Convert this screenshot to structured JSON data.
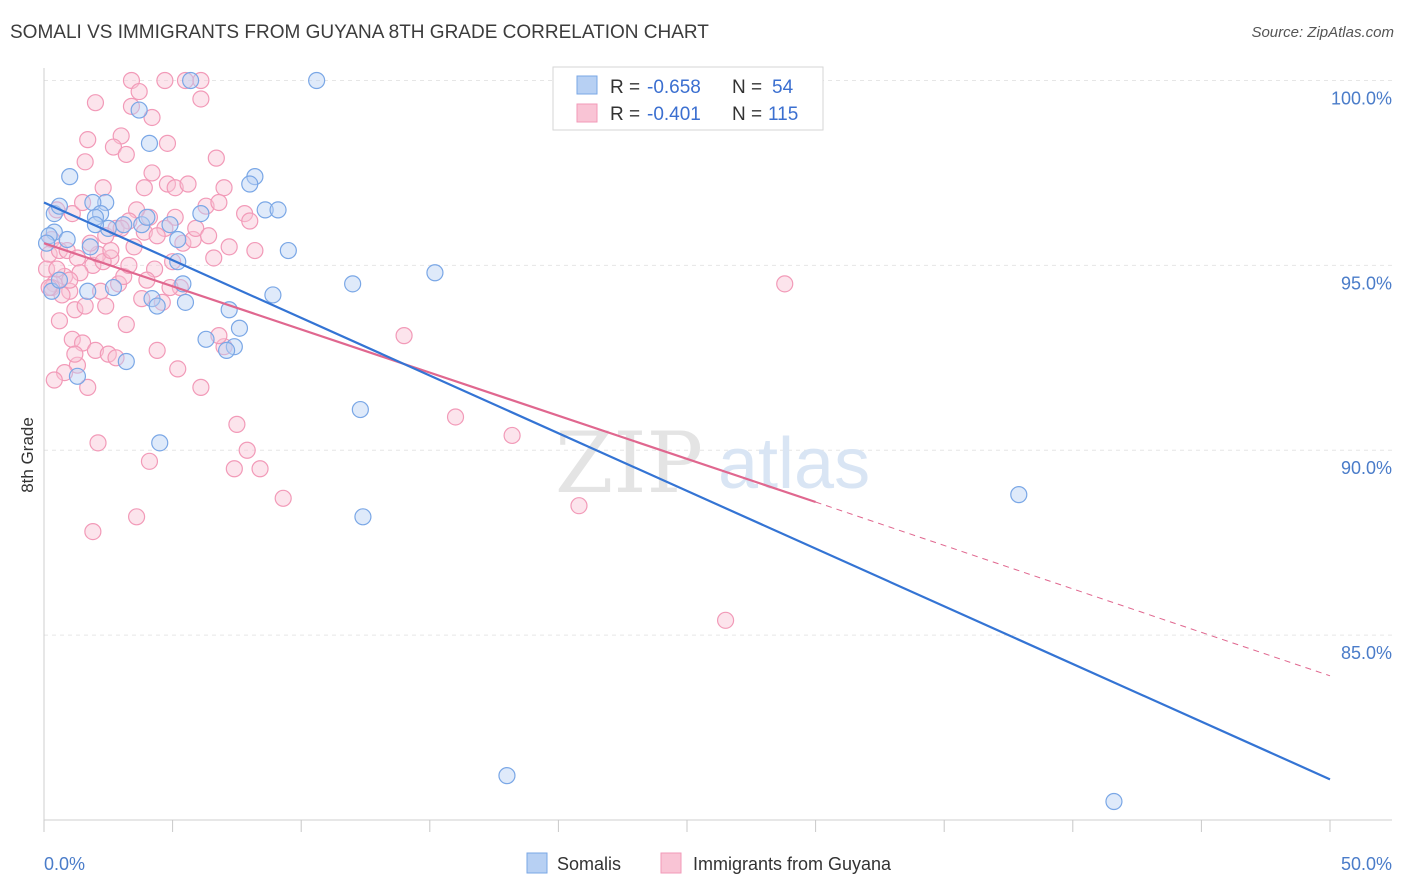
{
  "title": "SOMALI VS IMMIGRANTS FROM GUYANA 8TH GRADE CORRELATION CHART",
  "source": "Source: ZipAtlas.com",
  "watermark": {
    "zip": "ZIP",
    "atlas": "atlas"
  },
  "legend": {
    "r_label": "R =",
    "n_label": "N =",
    "rows": [
      {
        "r": "-0.658",
        "n": "54"
      },
      {
        "r": "-0.401",
        "n": "115"
      }
    ]
  },
  "chart_data": {
    "type": "scatter",
    "title": "SOMALI VS IMMIGRANTS FROM GUYANA 8TH GRADE CORRELATION CHART",
    "xlabel": "",
    "ylabel": "8th Grade",
    "xlim": [
      0,
      50
    ],
    "ylim": [
      80,
      100.5
    ],
    "x_tick_labels": [
      "0.0%",
      "50.0%"
    ],
    "y_ticks": [
      85,
      90,
      95,
      100
    ],
    "y_tick_labels": [
      "85.0%",
      "90.0%",
      "95.0%",
      "100.0%"
    ],
    "colors": {
      "Somalis": "#7aa7e6",
      "Immigrants from Guyana": "#f29ab8",
      "somali_line": "#3474d4",
      "guyana_line": "#e0678f"
    },
    "series": [
      {
        "name": "Somalis",
        "trend": {
          "x": [
            0,
            50
          ],
          "y": [
            96.7,
            81.1
          ]
        },
        "x": [
          5.7,
          10.6,
          0.4,
          2.4,
          0.4,
          1.0,
          0.9,
          1.9,
          0.6,
          3.8,
          3.1,
          4.0,
          2.2,
          5.2,
          6.1,
          8.2,
          8.0,
          4.1,
          3.7,
          8.6,
          9.1,
          9.5,
          5.2,
          4.9,
          2.0,
          2.5,
          1.8,
          1.7,
          2.7,
          4.2,
          0.2,
          0.1,
          0.3,
          5.4,
          5.5,
          4.4,
          3.2,
          6.3,
          7.6,
          7.4,
          7.1,
          7.2,
          12.0,
          15.2,
          8.9,
          12.3,
          12.4,
          18.0,
          4.5,
          1.3,
          0.6,
          37.9,
          41.6,
          2.0
        ],
        "y": [
          100.0,
          100.0,
          95.9,
          96.7,
          96.4,
          97.4,
          95.7,
          96.7,
          96.6,
          96.1,
          96.1,
          96.3,
          96.4,
          95.7,
          96.4,
          97.4,
          97.2,
          98.3,
          99.2,
          96.5,
          96.5,
          95.4,
          95.1,
          96.1,
          96.3,
          96.0,
          95.5,
          94.3,
          94.4,
          94.1,
          95.8,
          95.6,
          94.3,
          94.5,
          94.0,
          93.9,
          92.4,
          93.0,
          93.3,
          92.8,
          92.7,
          93.8,
          94.5,
          94.8,
          94.2,
          91.1,
          88.2,
          81.2,
          90.2,
          92.0,
          94.6,
          88.8,
          80.5,
          96.1
        ],
        "sizes": [
          8,
          8,
          8,
          8,
          8,
          8,
          8,
          8,
          8,
          8,
          8,
          8,
          8,
          8,
          8,
          8,
          8,
          8,
          8,
          8,
          8,
          8,
          8,
          8,
          8,
          8,
          8,
          8,
          8,
          8,
          8,
          8,
          8,
          8,
          8,
          8,
          8,
          8,
          8,
          8,
          8,
          8,
          8,
          8,
          8,
          8,
          8,
          8,
          8,
          8,
          8,
          8,
          8,
          8
        ]
      },
      {
        "name": "Immigrants from Guyana",
        "trend": {
          "x": [
            0,
            30
          ],
          "y": [
            95.6,
            88.6
          ],
          "dashed_to": {
            "x": 50,
            "y": 83.9
          }
        },
        "x": [
          3.4,
          3.7,
          5.5,
          6.1,
          4.7,
          6.1,
          2.0,
          3.4,
          4.2,
          4.8,
          1.7,
          3.0,
          6.7,
          2.7,
          1.6,
          3.2,
          2.3,
          4.2,
          3.9,
          4.8,
          5.1,
          6.3,
          7.0,
          7.8,
          8.0,
          5.6,
          5.1,
          6.8,
          4.1,
          4.7,
          3.6,
          0.5,
          1.1,
          1.5,
          2.4,
          2.8,
          3.3,
          3.9,
          4.4,
          5.4,
          0.3,
          0.2,
          0.6,
          0.9,
          1.3,
          1.9,
          2.6,
          0.8,
          1.4,
          2.1,
          3.5,
          4.3,
          5.0,
          5.8,
          6.6,
          7.2,
          1.0,
          0.4,
          0.1,
          0.3,
          0.7,
          1.2,
          1.6,
          2.2,
          2.9,
          3.1,
          3.8,
          4.6,
          5.3,
          0.5,
          1.0,
          1.8,
          2.3,
          2.6,
          3.3,
          4.0,
          4.9,
          5.9,
          6.4,
          8.2,
          7.0,
          0.2,
          0.6,
          1.1,
          1.5,
          2.0,
          2.5,
          3.2,
          4.4,
          5.2,
          6.1,
          1.3,
          0.8,
          1.7,
          2.8,
          7.5,
          7.9,
          8.4,
          14.0,
          16.0,
          18.2,
          20.8,
          26.5,
          28.8,
          0.4,
          1.2,
          2.1,
          3.6,
          4.1,
          7.4,
          1.9,
          2.4,
          3.0,
          6.8,
          9.3
        ],
        "y": [
          100.0,
          99.7,
          100.0,
          99.5,
          100.0,
          100.0,
          99.4,
          99.3,
          99.0,
          98.3,
          98.4,
          98.5,
          97.9,
          98.2,
          97.8,
          98.0,
          97.1,
          97.5,
          97.1,
          97.2,
          97.1,
          96.6,
          97.1,
          96.4,
          96.2,
          97.2,
          96.3,
          96.7,
          96.3,
          96.0,
          96.5,
          96.5,
          96.4,
          96.7,
          95.8,
          96.0,
          96.2,
          95.9,
          95.8,
          95.6,
          95.7,
          95.3,
          95.4,
          95.4,
          95.2,
          95.0,
          95.2,
          94.7,
          94.8,
          95.3,
          95.5,
          94.9,
          95.1,
          95.7,
          95.2,
          95.5,
          94.3,
          94.5,
          94.9,
          94.4,
          94.2,
          93.8,
          93.9,
          94.3,
          94.5,
          94.7,
          94.1,
          94.0,
          94.4,
          94.9,
          94.6,
          95.6,
          95.1,
          95.4,
          95.0,
          94.6,
          94.4,
          96.0,
          95.8,
          95.4,
          92.8,
          94.4,
          93.5,
          93.0,
          92.9,
          92.7,
          92.6,
          93.4,
          92.7,
          92.2,
          91.7,
          92.3,
          92.1,
          91.7,
          92.5,
          90.7,
          90.0,
          89.5,
          93.1,
          90.9,
          90.4,
          88.5,
          85.4,
          94.5,
          91.9,
          92.6,
          90.2,
          88.2,
          89.7,
          89.5,
          87.8,
          93.9,
          96.0,
          93.1,
          88.7
        ],
        "sizes": [
          8,
          8,
          8,
          8,
          8,
          8,
          8,
          8,
          8,
          8,
          8,
          8,
          8,
          8,
          8,
          8,
          8,
          8,
          8,
          8,
          8,
          8,
          8,
          8,
          8,
          8,
          8,
          8,
          8,
          8,
          8,
          8,
          8,
          8,
          8,
          8,
          8,
          8,
          8,
          8,
          8,
          8,
          8,
          8,
          8,
          8,
          8,
          8,
          8,
          8,
          8,
          8,
          8,
          8,
          8,
          8,
          8,
          8,
          8,
          8,
          8,
          8,
          8,
          8,
          8,
          8,
          8,
          8,
          8,
          8,
          8,
          8,
          8,
          8,
          8,
          8,
          8,
          8,
          8,
          8,
          8,
          8,
          8,
          8,
          8,
          8,
          8,
          8,
          8,
          8,
          8,
          8,
          8,
          8,
          8,
          8,
          8,
          8,
          8,
          8,
          8,
          8,
          8,
          8,
          8,
          8,
          8,
          8,
          8,
          8,
          8,
          8,
          8,
          8,
          8
        ]
      }
    ]
  }
}
